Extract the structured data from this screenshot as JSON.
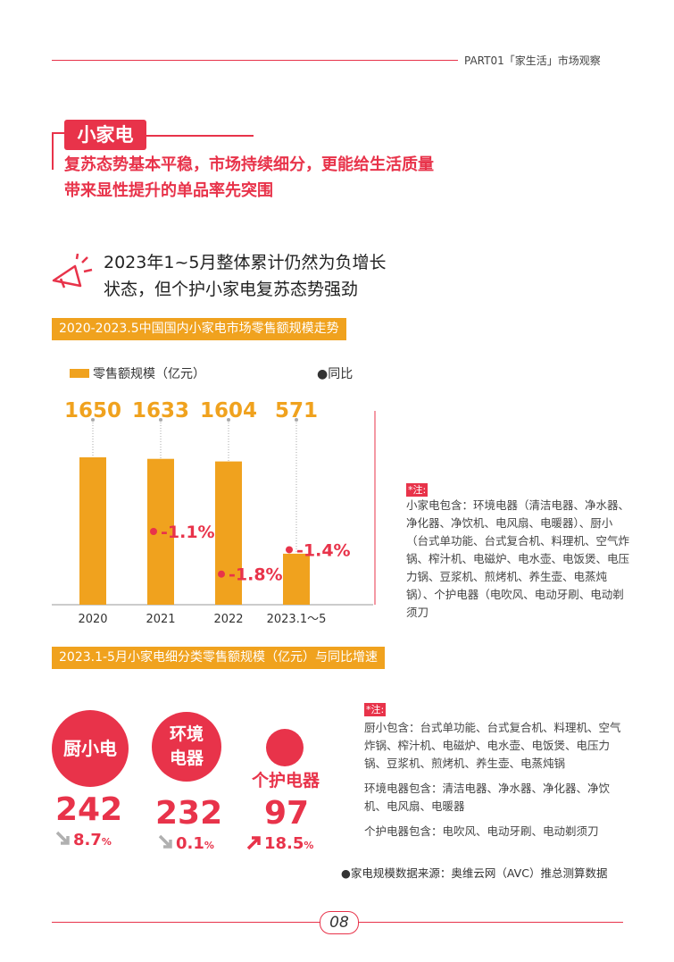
{
  "header": {
    "text": "PART01「家生活」市场观察"
  },
  "section": {
    "tag": "小家电",
    "subtitle_line1": "复苏态势基本平稳，市场持续细分，更能给生活质量",
    "subtitle_line2": "带来显性提升的单品率先突围"
  },
  "highlight": {
    "line1": "2023年1~5月整体累计仍然为负增长",
    "line2": "状态，但个护小家电复苏态势强劲"
  },
  "chart1": {
    "band_title": "2020-2023.5中国国内小家电市场零售额规模走势",
    "legend_bar": "零售额规模（亿元）",
    "legend_dot": "●同比"
  },
  "chart_data": [
    {
      "type": "bar",
      "title": "2020-2023.5中国国内小家电市场零售额规模走势",
      "categories": [
        "2020",
        "2021",
        "2022",
        "2023.1～5"
      ],
      "series": [
        {
          "name": "零售额规模（亿元）",
          "values": [
            1650,
            1633,
            1604,
            571
          ]
        },
        {
          "name": "同比",
          "values": [
            null,
            -1.1,
            -1.8,
            -1.4
          ],
          "labels": [
            "",
            "-1.1%",
            "-1.8%",
            "-1.4%"
          ]
        }
      ],
      "bar_labels": [
        "1650",
        "1633",
        "1604",
        "571"
      ],
      "ylim": [
        0,
        1900
      ],
      "bar_color": "#f0a21e",
      "dot_color": "#e8334a"
    }
  ],
  "note1": {
    "title": "*注:",
    "body": "小家电包含：环境电器（清洁电器、净水器、净化器、净饮机、电风扇、电暖器）、厨小（台式单功能、台式复合机、料理机、空气炸锅、榨汁机、电磁炉、电水壶、电饭煲、电压力锅、豆浆机、煎烤机、养生壶、电蒸炖锅）、个护电器（电吹风、电动牙刷、电动剃须刀"
  },
  "chart2": {
    "band_title": "2023.1-5月小家电细分类零售额规模（亿元）与同比增速",
    "items": [
      {
        "name": "厨小电",
        "value": "242",
        "pct": "8.7",
        "unit": "%",
        "trend": "down"
      },
      {
        "name_line1": "环境",
        "name_line2": "电器",
        "value": "232",
        "pct": "0.1",
        "unit": "%",
        "trend": "down"
      },
      {
        "name": "个护电器",
        "value": "97",
        "pct": "18.5",
        "unit": "%",
        "trend": "up"
      }
    ]
  },
  "note2": {
    "title": "*注:",
    "p1": "厨小包含：台式单功能、台式复合机、料理机、空气炸锅、榨汁机、电磁炉、电水壶、电饭煲、电压力锅、豆浆机、煎烤机、养生壶、电蒸炖锅",
    "p2": "环境电器包含：清洁电器、净水器、净化器、净饮机、电风扇、电暖器",
    "p3": "个护电器包含：电吹风、电动牙刷、电动剃须刀"
  },
  "source": "●家电规模数据来源：奥维云网（AVC）推总测算数据",
  "footer": {
    "page": "08"
  },
  "colors": {
    "accent": "#e8334a",
    "bar": "#f0a21e"
  }
}
